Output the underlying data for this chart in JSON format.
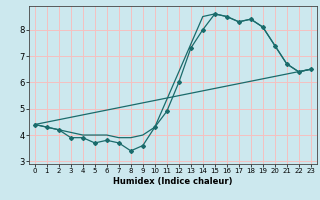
{
  "xlabel": "Humidex (Indice chaleur)",
  "bg_color": "#cce8ee",
  "grid_color": "#f5c0c0",
  "line_color": "#1a6b6b",
  "xlim": [
    -0.5,
    23.5
  ],
  "ylim": [
    2.9,
    8.9
  ],
  "yticks": [
    3,
    4,
    5,
    6,
    7,
    8
  ],
  "xticks": [
    0,
    1,
    2,
    3,
    4,
    5,
    6,
    7,
    8,
    9,
    10,
    11,
    12,
    13,
    14,
    15,
    16,
    17,
    18,
    19,
    20,
    21,
    22,
    23
  ],
  "line1_x": [
    0,
    1,
    2,
    3,
    4,
    5,
    6,
    7,
    8,
    9,
    10,
    11,
    12,
    13,
    14,
    15,
    16,
    17,
    18,
    19,
    20,
    21,
    22,
    23
  ],
  "line1_y": [
    4.4,
    4.3,
    4.2,
    3.9,
    3.9,
    3.7,
    3.8,
    3.7,
    3.4,
    3.6,
    4.3,
    4.9,
    6.0,
    7.3,
    8.0,
    8.6,
    8.5,
    8.3,
    8.4,
    8.1,
    7.4,
    6.7,
    6.4,
    6.5
  ],
  "line2_x": [
    0,
    1,
    2,
    3,
    4,
    5,
    6,
    7,
    8,
    9,
    10,
    14,
    15,
    16,
    17,
    18,
    19,
    20,
    21,
    22,
    23
  ],
  "line2_y": [
    4.4,
    4.3,
    4.2,
    4.1,
    4.0,
    4.0,
    4.0,
    3.9,
    3.9,
    4.0,
    4.3,
    8.5,
    8.6,
    8.5,
    8.3,
    8.4,
    8.1,
    7.4,
    6.7,
    6.4,
    6.5
  ],
  "line3_x": [
    0,
    23
  ],
  "line3_y": [
    4.4,
    6.5
  ]
}
